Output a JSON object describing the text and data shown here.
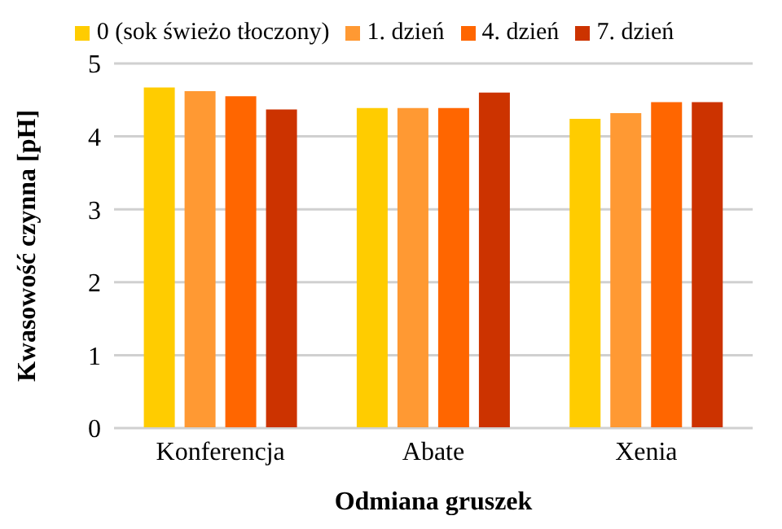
{
  "chart_data": {
    "type": "bar",
    "xlabel": "Odmiana gruszek",
    "ylabel": "Kwasowość czynna [pH]",
    "categories": [
      "Konferencja",
      "Abate",
      "Xenia"
    ],
    "series": [
      {
        "name": "0 (sok świeżo tłoczony)",
        "color": "#ffcc00",
        "values": [
          4.67,
          4.39,
          4.24
        ]
      },
      {
        "name": "1. dzień",
        "color": "#ff9933",
        "values": [
          4.62,
          4.39,
          4.32
        ]
      },
      {
        "name": "4. dzień",
        "color": "#ff6600",
        "values": [
          4.55,
          4.39,
          4.47
        ]
      },
      {
        "name": "7. dzień",
        "color": "#cc3300",
        "values": [
          4.37,
          4.6,
          4.47
        ]
      }
    ],
    "ylim": [
      0,
      5
    ],
    "yticks": [
      0,
      1,
      2,
      3,
      4,
      5
    ],
    "grid": "y",
    "legend": "top"
  }
}
